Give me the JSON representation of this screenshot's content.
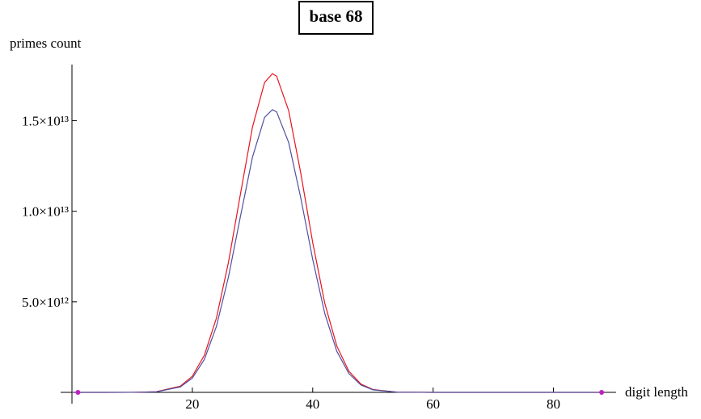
{
  "chart_data": {
    "type": "line",
    "title": "base 68",
    "y_label": "primes count",
    "x_label": "digit length",
    "x": [
      0,
      10,
      14,
      18,
      20,
      22,
      24,
      26,
      28,
      30,
      32,
      33.3,
      34,
      36,
      38,
      40,
      42,
      44,
      46,
      48,
      50,
      54,
      60,
      70,
      88
    ],
    "series": [
      {
        "color": "#e8141e",
        "values": [
          0,
          1900000000.0,
          33000000000.0,
          340000000000.0,
          890000000000.0,
          2050000000000.0,
          4100000000000.0,
          7180000000000.0,
          10970000000000.0,
          14660000000000.0,
          17110000000000.0,
          17600000000000.0,
          17460000000000.0,
          15560000000000.0,
          12130000000000.0,
          8270000000000.0,
          4920000000000.0,
          2560000000000.0,
          1170000000000.0,
          460000000000.0,
          160000000000.0,
          13000000000.0,
          0,
          0,
          0
        ]
      },
      {
        "color": "#5050a0",
        "values": [
          0,
          1700000000.0,
          29000000000.0,
          300000000000.0,
          790000000000.0,
          1820000000000.0,
          3640000000000.0,
          6370000000000.0,
          9730000000000.0,
          13000000000000.0,
          15180000000000.0,
          15610000000000.0,
          15490000000000.0,
          13800000000000.0,
          10760000000000.0,
          7340000000000.0,
          4360000000000.0,
          2270000000000.0,
          1040000000000.0,
          410000000000.0,
          140000000000.0,
          12000000000.0,
          0,
          0,
          0
        ]
      }
    ],
    "points": {
      "x": [
        1,
        88
      ],
      "values": [
        0,
        0
      ],
      "color": "#c020c0"
    },
    "xlim": [
      0,
      90
    ],
    "ylim": [
      0,
      18100000000000.0
    ],
    "xticks": [
      20,
      40,
      60,
      80
    ],
    "yticks": [
      {
        "value": 5000000000000.0,
        "label": "5.0×10¹²"
      },
      {
        "value": 10000000000000.0,
        "label": "1.0×10¹³"
      },
      {
        "value": 15000000000000.0,
        "label": "1.5×10¹³"
      }
    ]
  }
}
